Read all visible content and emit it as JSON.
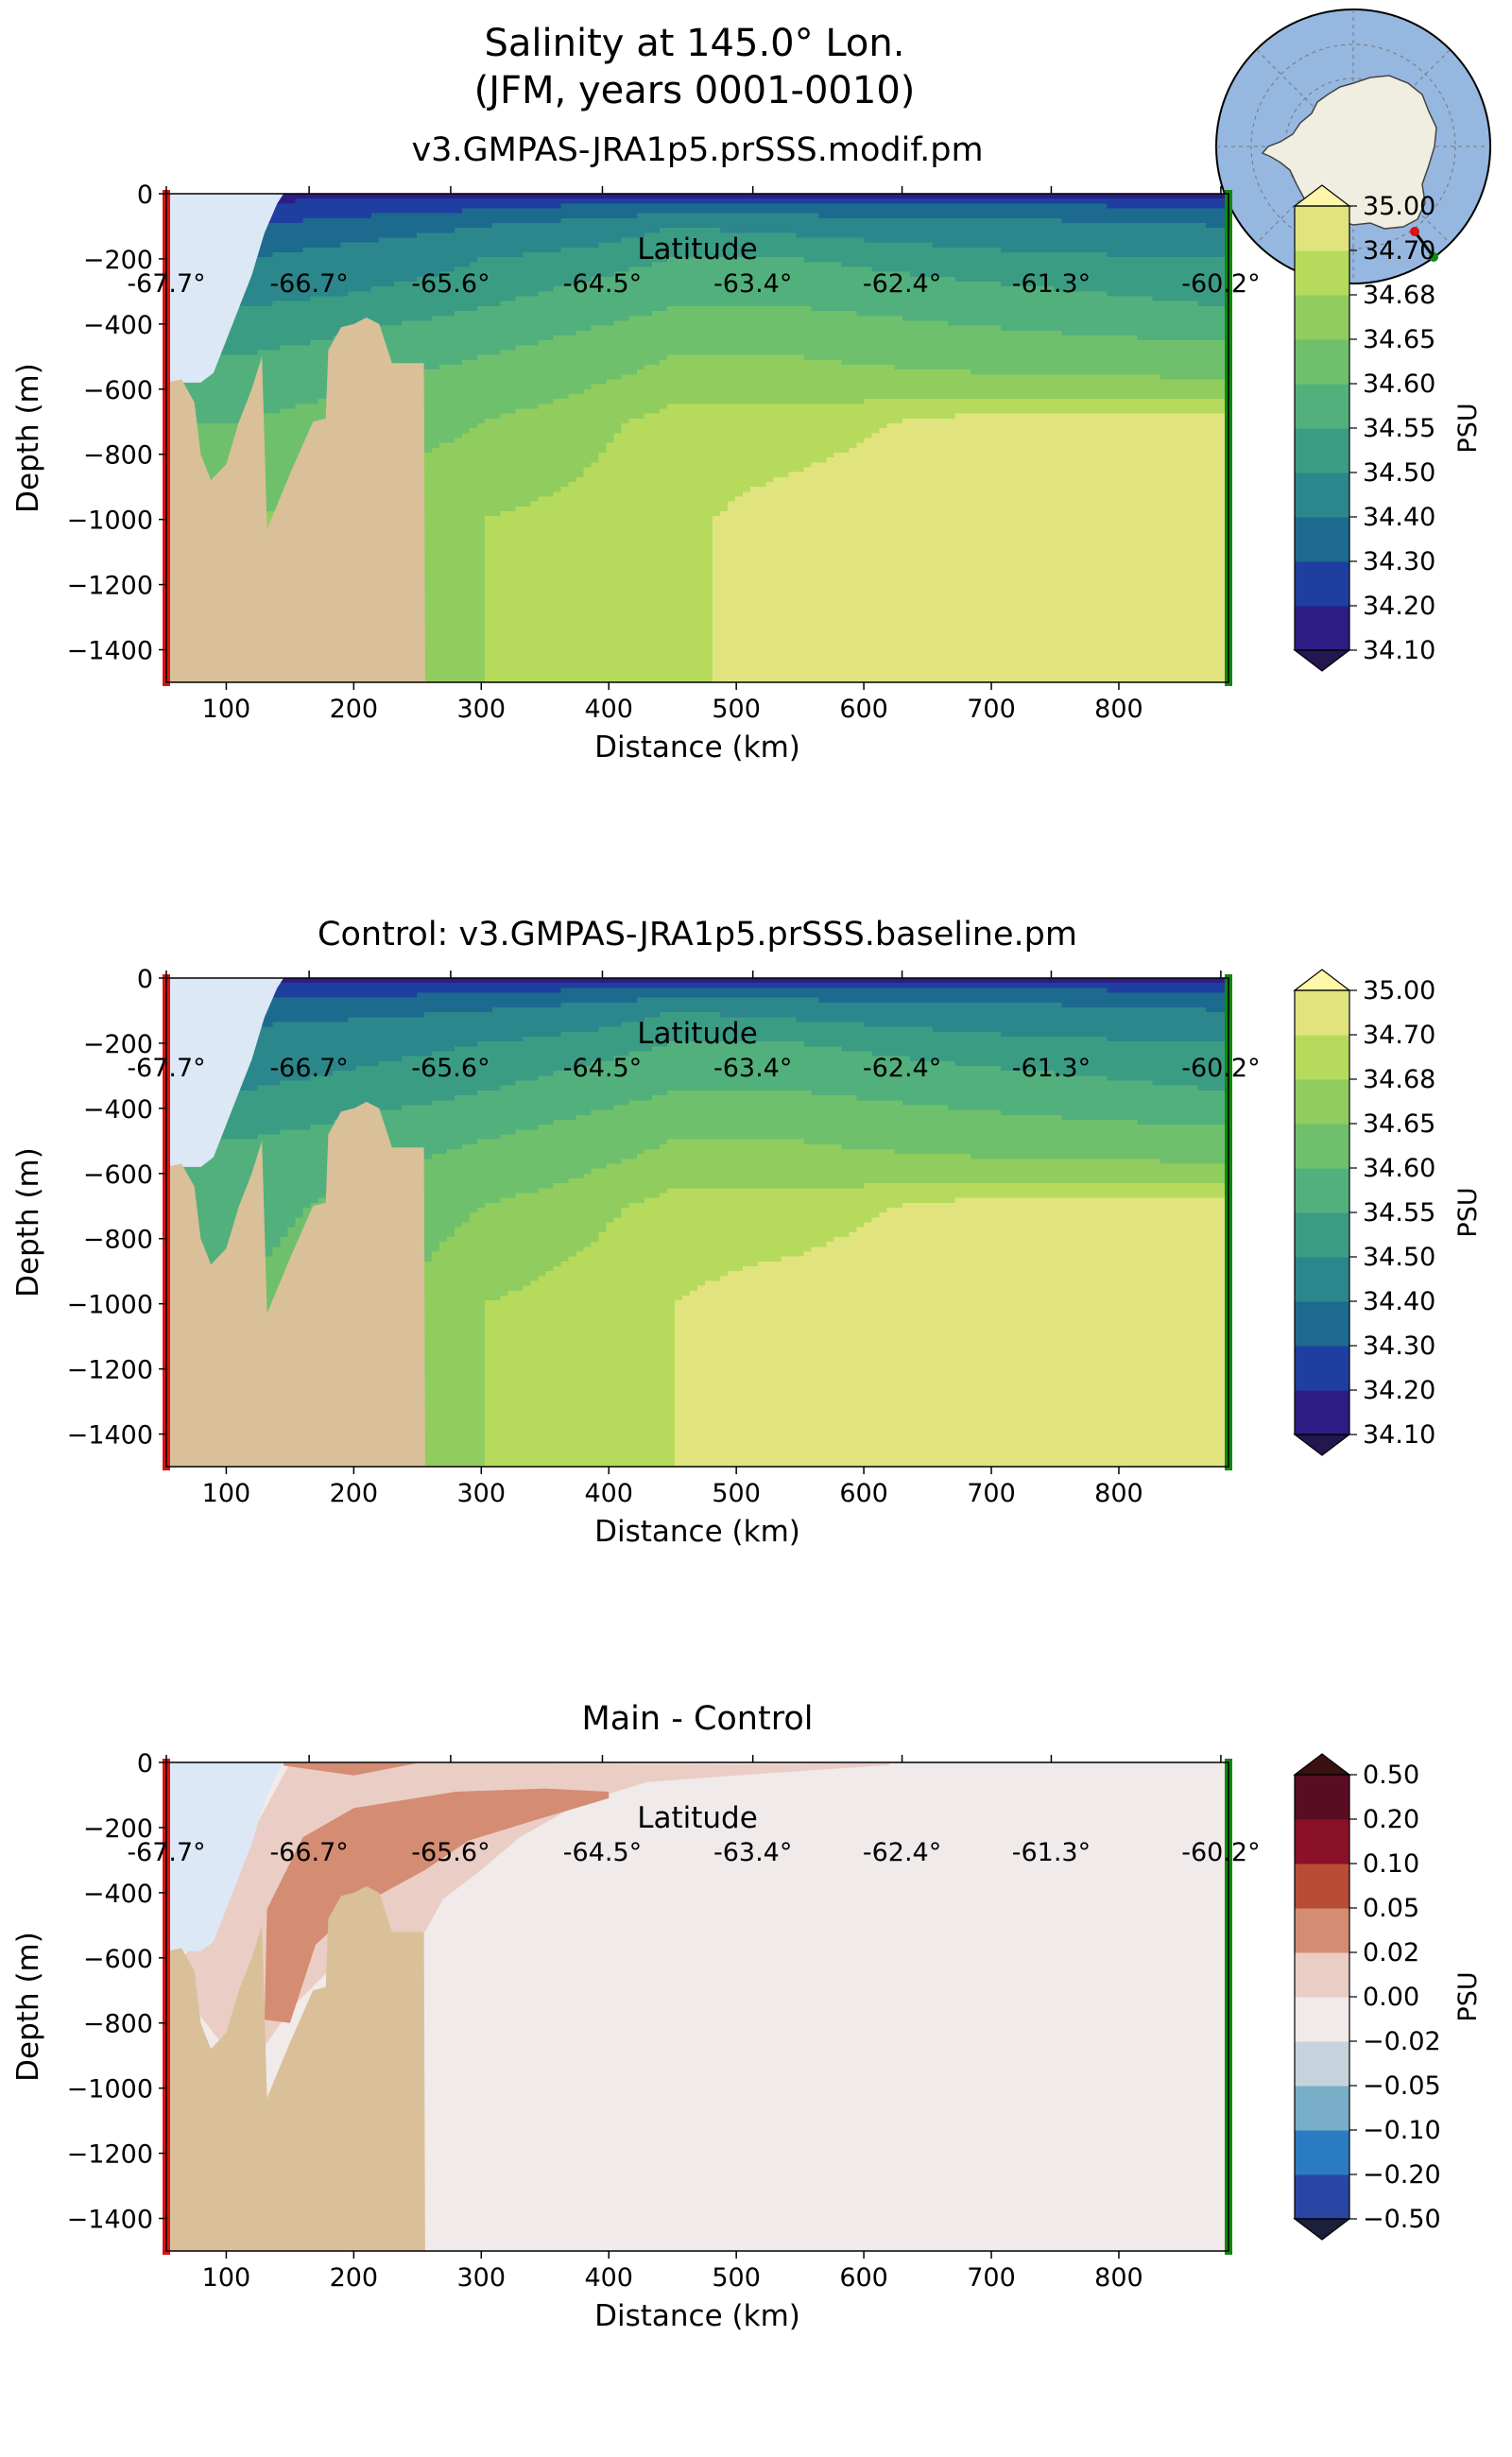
{
  "title": {
    "line1": "Salinity at 145.0° Lon.",
    "line2": "(JFM, years 0001-0010)"
  },
  "colors": {
    "land": "#d9c098",
    "ice_shelf": "#dce8f5",
    "ocean_map": "#96b8e0",
    "continent_map": "#f0eee0",
    "section_start": "#dd1111",
    "section_end": "#118811"
  },
  "map": {
    "name": "antarctic-locator-map"
  },
  "chart_data": [
    {
      "id": "main",
      "type": "contourf",
      "title": "v3.GMPAS-JRA1p5.prSSS.modif.pm",
      "xlabel": "Distance (km)",
      "ylabel": "Depth (m)",
      "top_xlabel": "Latitude",
      "xlim": [
        53,
        886
      ],
      "ylim": [
        -1500,
        0
      ],
      "xticks": [
        100,
        200,
        300,
        400,
        500,
        600,
        700,
        800
      ],
      "yticks": [
        0,
        -200,
        -400,
        -600,
        -800,
        -1000,
        -1200,
        -1400
      ],
      "ytick_labels": [
        "0",
        "−200",
        "−400",
        "−600",
        "−800",
        "−1000",
        "−1200",
        "−1400"
      ],
      "top_ticks": [
        {
          "x": 53,
          "label": "-67.7°"
        },
        {
          "x": 165,
          "label": "-66.7°"
        },
        {
          "x": 276,
          "label": "-65.6°"
        },
        {
          "x": 395,
          "label": "-64.5°"
        },
        {
          "x": 513,
          "label": "-63.4°"
        },
        {
          "x": 630,
          "label": "-62.4°"
        },
        {
          "x": 747,
          "label": "-61.3°"
        },
        {
          "x": 880,
          "label": "-60.2°"
        }
      ],
      "colorbar": {
        "label": "PSU",
        "levels": [
          "34.10",
          "34.20",
          "34.30",
          "34.40",
          "34.50",
          "34.55",
          "34.60",
          "34.65",
          "34.68",
          "34.70",
          "35.00"
        ],
        "colors": [
          "#2d1d85",
          "#1f3fa0",
          "#1d6a8f",
          "#2b878b",
          "#3b9c84",
          "#52b07c",
          "#6fc06c",
          "#90cd5e",
          "#b6db5c",
          "#e1e47e"
        ],
        "under": "#24164f",
        "over": "#fdf5a8"
      },
      "profiles": [
        {
          "d": 110,
          "v": [
            34.1,
            34.2,
            34.3,
            34.4,
            34.5,
            34.55,
            34.6,
            34.65,
            34.68
          ]
        },
        {
          "d": 300,
          "v": [
            34.1,
            34.25,
            34.4,
            34.5,
            34.55,
            34.6,
            34.65,
            34.68,
            34.68
          ]
        },
        {
          "d": 450,
          "v": [
            34.1,
            34.3,
            34.5,
            34.55,
            34.6,
            34.65,
            34.69,
            34.695,
            34.695
          ]
        },
        {
          "d": 550,
          "v": [
            34.1,
            34.3,
            34.48,
            34.55,
            34.6,
            34.65,
            34.69,
            34.71,
            34.71
          ]
        },
        {
          "d": 700,
          "v": [
            34.1,
            34.3,
            34.45,
            34.52,
            34.58,
            34.63,
            34.71,
            34.72,
            34.72
          ]
        },
        {
          "d": 886,
          "v": [
            34.1,
            34.25,
            34.4,
            34.5,
            34.55,
            34.62,
            34.71,
            34.72,
            34.72
          ]
        }
      ],
      "bathymetry": [
        [
          53,
          -580
        ],
        [
          65,
          -570
        ],
        [
          75,
          -640
        ],
        [
          80,
          -800
        ],
        [
          88,
          -880
        ],
        [
          100,
          -830
        ],
        [
          110,
          -700
        ],
        [
          120,
          -600
        ],
        [
          128,
          -500
        ],
        [
          132,
          -1030
        ],
        [
          150,
          -860
        ],
        [
          168,
          -700
        ],
        [
          178,
          -690
        ],
        [
          180,
          -480
        ],
        [
          190,
          -410
        ],
        [
          200,
          -400
        ],
        [
          210,
          -380
        ],
        [
          220,
          -400
        ],
        [
          230,
          -520
        ],
        [
          255,
          -520
        ],
        [
          256,
          -1500
        ]
      ],
      "ice_shelf": [
        [
          53,
          0
        ],
        [
          145,
          0
        ],
        [
          140,
          -30
        ],
        [
          130,
          -120
        ],
        [
          120,
          -250
        ],
        [
          110,
          -350
        ],
        [
          100,
          -450
        ],
        [
          90,
          -550
        ],
        [
          80,
          -580
        ],
        [
          53,
          -580
        ]
      ]
    },
    {
      "id": "control",
      "type": "contourf",
      "title": "Control: v3.GMPAS-JRA1p5.prSSS.baseline.pm",
      "xlabel": "Distance (km)",
      "ylabel": "Depth (m)",
      "top_xlabel": "Latitude",
      "xlim": [
        53,
        886
      ],
      "ylim": [
        -1500,
        0
      ],
      "xticks": [
        100,
        200,
        300,
        400,
        500,
        600,
        700,
        800
      ],
      "yticks": [
        0,
        -200,
        -400,
        -600,
        -800,
        -1000,
        -1200,
        -1400
      ],
      "ytick_labels": [
        "0",
        "−200",
        "−400",
        "−600",
        "−800",
        "−1000",
        "−1200",
        "−1400"
      ],
      "top_ticks": [
        {
          "x": 53,
          "label": "-67.7°"
        },
        {
          "x": 165,
          "label": "-66.7°"
        },
        {
          "x": 276,
          "label": "-65.6°"
        },
        {
          "x": 395,
          "label": "-64.5°"
        },
        {
          "x": 513,
          "label": "-63.4°"
        },
        {
          "x": 630,
          "label": "-62.4°"
        },
        {
          "x": 747,
          "label": "-61.3°"
        },
        {
          "x": 880,
          "label": "-60.2°"
        }
      ],
      "colorbar": {
        "label": "PSU",
        "levels": [
          "34.10",
          "34.20",
          "34.30",
          "34.40",
          "34.50",
          "34.55",
          "34.60",
          "34.65",
          "34.68",
          "34.70",
          "35.00"
        ],
        "colors": [
          "#2d1d85",
          "#1f3fa0",
          "#1d6a8f",
          "#2b878b",
          "#3b9c84",
          "#52b07c",
          "#6fc06c",
          "#90cd5e",
          "#b6db5c",
          "#e1e47e"
        ],
        "under": "#24164f",
        "over": "#fdf5a8"
      },
      "profiles": [
        {
          "d": 110,
          "v": [
            34.1,
            34.25,
            34.35,
            34.45,
            34.5,
            34.55,
            34.58,
            34.6,
            34.62
          ]
        },
        {
          "d": 300,
          "v": [
            34.1,
            34.25,
            34.4,
            34.5,
            34.55,
            34.6,
            34.65,
            34.68,
            34.68
          ]
        },
        {
          "d": 450,
          "v": [
            34.1,
            34.3,
            34.5,
            34.55,
            34.6,
            34.65,
            34.69,
            34.7,
            34.7
          ]
        },
        {
          "d": 550,
          "v": [
            34.1,
            34.3,
            34.48,
            34.55,
            34.6,
            34.65,
            34.69,
            34.71,
            34.71
          ]
        },
        {
          "d": 700,
          "v": [
            34.1,
            34.3,
            34.45,
            34.52,
            34.58,
            34.63,
            34.71,
            34.72,
            34.72
          ]
        },
        {
          "d": 886,
          "v": [
            34.1,
            34.25,
            34.4,
            34.5,
            34.55,
            34.62,
            34.71,
            34.72,
            34.72
          ]
        }
      ],
      "bathymetry": [
        [
          53,
          -580
        ],
        [
          65,
          -570
        ],
        [
          75,
          -640
        ],
        [
          80,
          -800
        ],
        [
          88,
          -880
        ],
        [
          100,
          -830
        ],
        [
          110,
          -700
        ],
        [
          120,
          -600
        ],
        [
          128,
          -500
        ],
        [
          132,
          -1030
        ],
        [
          150,
          -860
        ],
        [
          168,
          -700
        ],
        [
          178,
          -690
        ],
        [
          180,
          -480
        ],
        [
          190,
          -410
        ],
        [
          200,
          -400
        ],
        [
          210,
          -380
        ],
        [
          220,
          -400
        ],
        [
          230,
          -520
        ],
        [
          255,
          -520
        ],
        [
          256,
          -1500
        ]
      ],
      "ice_shelf": [
        [
          53,
          0
        ],
        [
          145,
          0
        ],
        [
          140,
          -30
        ],
        [
          130,
          -120
        ],
        [
          120,
          -250
        ],
        [
          110,
          -350
        ],
        [
          100,
          -450
        ],
        [
          90,
          -550
        ],
        [
          80,
          -580
        ],
        [
          53,
          -580
        ]
      ]
    },
    {
      "id": "diff",
      "type": "contourf",
      "title": "Main - Control",
      "xlabel": "Distance (km)",
      "ylabel": "Depth (m)",
      "top_xlabel": "Latitude",
      "xlim": [
        53,
        886
      ],
      "ylim": [
        -1500,
        0
      ],
      "xticks": [
        100,
        200,
        300,
        400,
        500,
        600,
        700,
        800
      ],
      "yticks": [
        0,
        -200,
        -400,
        -600,
        -800,
        -1000,
        -1200,
        -1400
      ],
      "ytick_labels": [
        "0",
        "−200",
        "−400",
        "−600",
        "−800",
        "−1000",
        "−1200",
        "−1400"
      ],
      "top_ticks": [
        {
          "x": 53,
          "label": "-67.7°"
        },
        {
          "x": 165,
          "label": "-66.7°"
        },
        {
          "x": 276,
          "label": "-65.6°"
        },
        {
          "x": 395,
          "label": "-64.5°"
        },
        {
          "x": 513,
          "label": "-63.4°"
        },
        {
          "x": 630,
          "label": "-62.4°"
        },
        {
          "x": 747,
          "label": "-61.3°"
        },
        {
          "x": 880,
          "label": "-60.2°"
        }
      ],
      "colorbar": {
        "label": "PSU",
        "levels": [
          "−0.50",
          "−0.20",
          "−0.10",
          "−0.05",
          "−0.02",
          "0.00",
          "0.02",
          "0.05",
          "0.10",
          "0.20",
          "0.50"
        ],
        "colors": [
          "#2a46a4",
          "#2b7bc3",
          "#78aec8",
          "#c6d3dc",
          "#f0eaea",
          "#eacdc5",
          "#d48c73",
          "#b94c34",
          "#8a1128",
          "#580d24"
        ],
        "under": "#1b1f3a",
        "over": "#3a1010"
      },
      "anomaly_bands": [
        {
          "level": 0.02,
          "top": [
            [
              150,
              -2
            ],
            [
              300,
              -2
            ],
            [
              500,
              -6
            ],
            [
              620,
              -2
            ]
          ],
          "bottom": [
            [
              620,
              -8
            ],
            [
              500,
              -40
            ],
            [
              430,
              -60
            ],
            [
              380,
              -120
            ],
            [
              330,
              -230
            ],
            [
              300,
              -330
            ],
            [
              270,
              -420
            ],
            [
              256,
              -520
            ],
            [
              200,
              -560
            ],
            [
              150,
              -760
            ],
            [
              125,
              -900
            ],
            [
              100,
              -880
            ],
            [
              80,
              -780
            ],
            [
              60,
              -700
            ],
            [
              53,
              -700
            ]
          ]
        },
        {
          "level": 0.05,
          "top": [
            [
              145,
              -2
            ],
            [
              250,
              -2
            ],
            [
              200,
              -40
            ],
            [
              145,
              -10
            ]
          ],
          "bottom": []
        },
        {
          "level": 0.05,
          "top": [
            [
              200,
              -140
            ],
            [
              280,
              -90
            ],
            [
              350,
              -80
            ],
            [
              400,
              -90
            ]
          ],
          "bottom": [
            [
              400,
              -110
            ],
            [
              340,
              -180
            ],
            [
              290,
              -240
            ],
            [
              256,
              -330
            ],
            [
              200,
              -450
            ],
            [
              170,
              -560
            ],
            [
              150,
              -800
            ],
            [
              130,
              -790
            ],
            [
              132,
              -450
            ],
            [
              160,
              -230
            ]
          ]
        },
        {
          "level": 0.05,
          "top": [
            [
              53,
              -600
            ],
            [
              62,
              -600
            ],
            [
              65,
              -660
            ]
          ],
          "bottom": [
            [
              53,
              -660
            ]
          ]
        }
      ],
      "bathymetry": [
        [
          53,
          -580
        ],
        [
          65,
          -570
        ],
        [
          75,
          -640
        ],
        [
          80,
          -800
        ],
        [
          88,
          -880
        ],
        [
          100,
          -830
        ],
        [
          110,
          -700
        ],
        [
          120,
          -600
        ],
        [
          128,
          -500
        ],
        [
          132,
          -1030
        ],
        [
          150,
          -860
        ],
        [
          168,
          -700
        ],
        [
          178,
          -690
        ],
        [
          180,
          -480
        ],
        [
          190,
          -410
        ],
        [
          200,
          -400
        ],
        [
          210,
          -380
        ],
        [
          220,
          -400
        ],
        [
          230,
          -520
        ],
        [
          255,
          -520
        ],
        [
          256,
          -1500
        ]
      ],
      "ice_shelf": [
        [
          53,
          0
        ],
        [
          145,
          0
        ],
        [
          140,
          -30
        ],
        [
          130,
          -120
        ],
        [
          120,
          -250
        ],
        [
          110,
          -350
        ],
        [
          100,
          -450
        ],
        [
          90,
          -550
        ],
        [
          80,
          -580
        ],
        [
          53,
          -580
        ]
      ]
    }
  ]
}
